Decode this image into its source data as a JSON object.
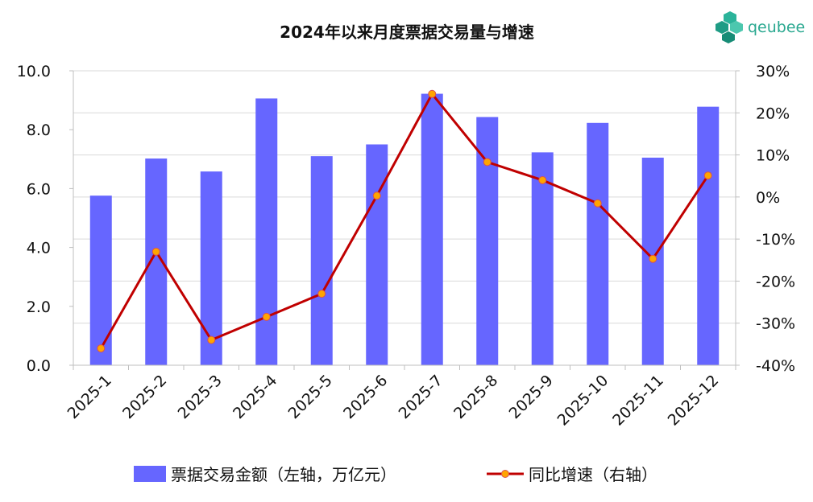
{
  "logo": {
    "text": "qeubee"
  },
  "chart_data": {
    "type": "bar",
    "title": "2024年以来月度票据交易量与增速",
    "categories": [
      "2025-1",
      "2025-2",
      "2025-3",
      "2025-4",
      "2025-5",
      "2025-6",
      "2025-7",
      "2025-8",
      "2025-9",
      "2025-10",
      "2025-11",
      "2025-12"
    ],
    "series": [
      {
        "name": "票据交易金额（左轴，万亿元）",
        "type": "bar",
        "axis": "left",
        "color": "#6666ff",
        "values": [
          5.76,
          7.02,
          6.58,
          9.06,
          7.1,
          7.5,
          9.22,
          8.43,
          7.23,
          8.23,
          7.05,
          8.78
        ]
      },
      {
        "name": "同比增速（右轴）",
        "type": "line",
        "axis": "right",
        "color": "#c00000",
        "marker_color": "#ffa500",
        "values": [
          -36.0,
          -13.0,
          -34.0,
          -28.5,
          -23.0,
          0.3,
          24.5,
          8.3,
          4.0,
          -1.5,
          -14.7,
          5.1
        ]
      }
    ],
    "left_axis": {
      "ylim": [
        0,
        10
      ],
      "ticks": [
        "0.0",
        "2.0",
        "4.0",
        "6.0",
        "8.0",
        "10.0"
      ],
      "tick_values": [
        0,
        2,
        4,
        6,
        8,
        10
      ]
    },
    "right_axis": {
      "ylim": [
        -40,
        30
      ],
      "ticks": [
        "-40%",
        "-30%",
        "-20%",
        "-10%",
        "0%",
        "10%",
        "20%",
        "30%"
      ],
      "tick_values": [
        -40,
        -30,
        -20,
        -10,
        0,
        10,
        20,
        30
      ]
    },
    "grid": "horizontal",
    "legend_position": "bottom"
  }
}
